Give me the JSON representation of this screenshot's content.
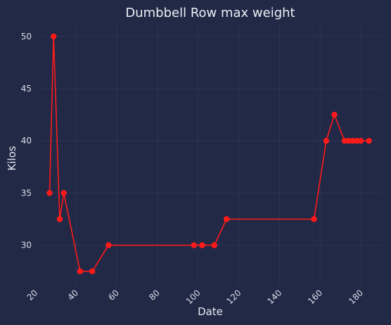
{
  "chart_data": {
    "type": "line",
    "title": "Dumbbell Row max weight",
    "xlabel": "Date",
    "ylabel": "Kilos",
    "xlim": [
      22,
      190
    ],
    "ylim": [
      26.2,
      51.2
    ],
    "xticks": [
      20,
      40,
      60,
      80,
      100,
      120,
      140,
      160,
      180
    ],
    "yticks": [
      30,
      35,
      40,
      45,
      50
    ],
    "grid": true,
    "series": [
      {
        "x": [
          27,
          29,
          32,
          34,
          42,
          48,
          56,
          98,
          102,
          108,
          114,
          157,
          163,
          167,
          172,
          174,
          176,
          178,
          180,
          184
        ],
        "values": [
          35,
          50,
          32.5,
          35,
          27.5,
          27.5,
          30,
          30,
          30,
          30,
          32.5,
          32.5,
          40,
          42.5,
          40,
          40,
          40,
          40,
          40,
          40
        ]
      }
    ],
    "colors": {
      "background": "#212946",
      "grid": "#2a3459",
      "line": "#ff1a1a",
      "marker": "#ff1a1a"
    }
  }
}
